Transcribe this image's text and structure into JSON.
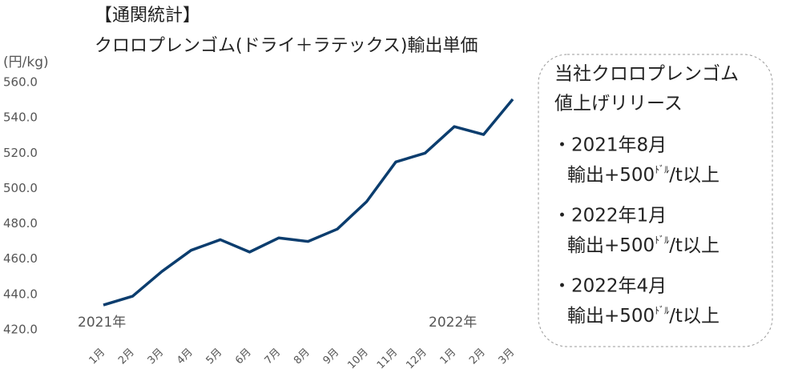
{
  "chart_data": {
    "type": "line",
    "title": [
      "【通関統計】",
      "クロロプレンゴム(ドライ＋ラテックス)輸出単価"
    ],
    "y_label": "(円/kg)",
    "categories": [
      "1月",
      "2月",
      "3月",
      "4月",
      "5月",
      "6月",
      "7月",
      "8月",
      "9月",
      "10月",
      "11月",
      "12月",
      "1月",
      "2月",
      "3月"
    ],
    "series": [
      {
        "name": "輸出単価",
        "color": "#0b3d6e",
        "values": [
          434,
          439,
          453,
          465,
          471,
          464,
          472,
          470,
          477,
          492.5,
          515,
          520,
          535,
          530.5,
          550.5
        ]
      }
    ],
    "ylim": [
      420,
      560
    ],
    "yticks": [
      {
        "value": 420,
        "label": "420.0"
      },
      {
        "value": 440,
        "label": "440.0"
      },
      {
        "value": 460,
        "label": "460.0"
      },
      {
        "value": 480,
        "label": "480.0"
      },
      {
        "value": 500,
        "label": "500.0"
      },
      {
        "value": 520,
        "label": "520.0"
      },
      {
        "value": 540,
        "label": "540.0"
      },
      {
        "value": 560,
        "label": "560.0"
      }
    ],
    "annotations": [
      "2021年",
      "2022年"
    ],
    "callout": {
      "heading": [
        "当社クロロプレンゴム",
        "値上げリリース"
      ],
      "items": [
        {
          "date": "・2021年8月",
          "prefix": "輸出+500",
          "unit": "ﾄﾞﾙ",
          "suffix": "/t以上"
        },
        {
          "date": "・2022年1月",
          "prefix": "輸出+500",
          "unit": "ﾄﾞﾙ",
          "suffix": "/t以上"
        },
        {
          "date": "・2022年4月",
          "prefix": "輸出+500",
          "unit": "ﾄﾞﾙ",
          "suffix": "/t以上"
        }
      ]
    }
  }
}
